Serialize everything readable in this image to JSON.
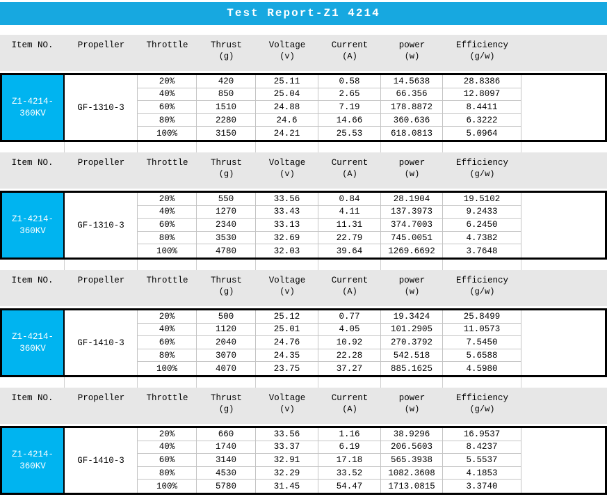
{
  "title": "Test Report-Z1 4214",
  "colors": {
    "title_bar": "#17a8e0",
    "item_cell": "#00b4f0",
    "header_band": "#e7e7e7",
    "grid_line": "#c4c4c4",
    "gap_grid_line": "#d0d0d0",
    "table_border": "#000000"
  },
  "columns": [
    {
      "label": "Item NO.",
      "unit": ""
    },
    {
      "label": "Propeller",
      "unit": ""
    },
    {
      "label": "Throttle",
      "unit": ""
    },
    {
      "label": "Thrust",
      "unit": "(g)"
    },
    {
      "label": "Voltage",
      "unit": "(v)"
    },
    {
      "label": "Current",
      "unit": "(A)"
    },
    {
      "label": "power",
      "unit": "(w)"
    },
    {
      "label": "Efficiency",
      "unit": "(g/w)"
    }
  ],
  "sections": [
    {
      "item_no": "Z1-4214-360KV",
      "item_line1": "Z1-4214-",
      "item_line2": "360KV",
      "propeller": "GF-1310-3",
      "rows": [
        {
          "throttle": "20%",
          "thrust": "420",
          "voltage": "25.11",
          "current": "0.58",
          "power": "14.5638",
          "efficiency": "28.8386"
        },
        {
          "throttle": "40%",
          "thrust": "850",
          "voltage": "25.04",
          "current": "2.65",
          "power": "66.356",
          "efficiency": "12.8097"
        },
        {
          "throttle": "60%",
          "thrust": "1510",
          "voltage": "24.88",
          "current": "7.19",
          "power": "178.8872",
          "efficiency": "8.4411"
        },
        {
          "throttle": "80%",
          "thrust": "2280",
          "voltage": "24.6",
          "current": "14.66",
          "power": "360.636",
          "efficiency": "6.3222"
        },
        {
          "throttle": "100%",
          "thrust": "3150",
          "voltage": "24.21",
          "current": "25.53",
          "power": "618.0813",
          "efficiency": "5.0964"
        }
      ]
    },
    {
      "item_no": "Z1-4214-360KV",
      "item_line1": "Z1-4214-",
      "item_line2": "360KV",
      "propeller": "GF-1310-3",
      "rows": [
        {
          "throttle": "20%",
          "thrust": "550",
          "voltage": "33.56",
          "current": "0.84",
          "power": "28.1904",
          "efficiency": "19.5102"
        },
        {
          "throttle": "40%",
          "thrust": "1270",
          "voltage": "33.43",
          "current": "4.11",
          "power": "137.3973",
          "efficiency": "9.2433"
        },
        {
          "throttle": "60%",
          "thrust": "2340",
          "voltage": "33.13",
          "current": "11.31",
          "power": "374.7003",
          "efficiency": "6.2450"
        },
        {
          "throttle": "80%",
          "thrust": "3530",
          "voltage": "32.69",
          "current": "22.79",
          "power": "745.0051",
          "efficiency": "4.7382"
        },
        {
          "throttle": "100%",
          "thrust": "4780",
          "voltage": "32.03",
          "current": "39.64",
          "power": "1269.6692",
          "efficiency": "3.7648"
        }
      ]
    },
    {
      "item_no": "Z1-4214-360KV",
      "item_line1": "Z1-4214-",
      "item_line2": "360KV",
      "propeller": "GF-1410-3",
      "rows": [
        {
          "throttle": "20%",
          "thrust": "500",
          "voltage": "25.12",
          "current": "0.77",
          "power": "19.3424",
          "efficiency": "25.8499"
        },
        {
          "throttle": "40%",
          "thrust": "1120",
          "voltage": "25.01",
          "current": "4.05",
          "power": "101.2905",
          "efficiency": "11.0573"
        },
        {
          "throttle": "60%",
          "thrust": "2040",
          "voltage": "24.76",
          "current": "10.92",
          "power": "270.3792",
          "efficiency": "7.5450"
        },
        {
          "throttle": "80%",
          "thrust": "3070",
          "voltage": "24.35",
          "current": "22.28",
          "power": "542.518",
          "efficiency": "5.6588"
        },
        {
          "throttle": "100%",
          "thrust": "4070",
          "voltage": "23.75",
          "current": "37.27",
          "power": "885.1625",
          "efficiency": "4.5980"
        }
      ]
    },
    {
      "item_no": "Z1-4214-360KV",
      "item_line1": "Z1-4214-",
      "item_line2": "360KV",
      "propeller": "GF-1410-3",
      "rows": [
        {
          "throttle": "20%",
          "thrust": "660",
          "voltage": "33.56",
          "current": "1.16",
          "power": "38.9296",
          "efficiency": "16.9537"
        },
        {
          "throttle": "40%",
          "thrust": "1740",
          "voltage": "33.37",
          "current": "6.19",
          "power": "206.5603",
          "efficiency": "8.4237"
        },
        {
          "throttle": "60%",
          "thrust": "3140",
          "voltage": "32.91",
          "current": "17.18",
          "power": "565.3938",
          "efficiency": "5.5537"
        },
        {
          "throttle": "80%",
          "thrust": "4530",
          "voltage": "32.29",
          "current": "33.52",
          "power": "1082.3608",
          "efficiency": "4.1853"
        },
        {
          "throttle": "100%",
          "thrust": "5780",
          "voltage": "31.45",
          "current": "54.47",
          "power": "1713.0815",
          "efficiency": "3.3740"
        }
      ]
    }
  ]
}
